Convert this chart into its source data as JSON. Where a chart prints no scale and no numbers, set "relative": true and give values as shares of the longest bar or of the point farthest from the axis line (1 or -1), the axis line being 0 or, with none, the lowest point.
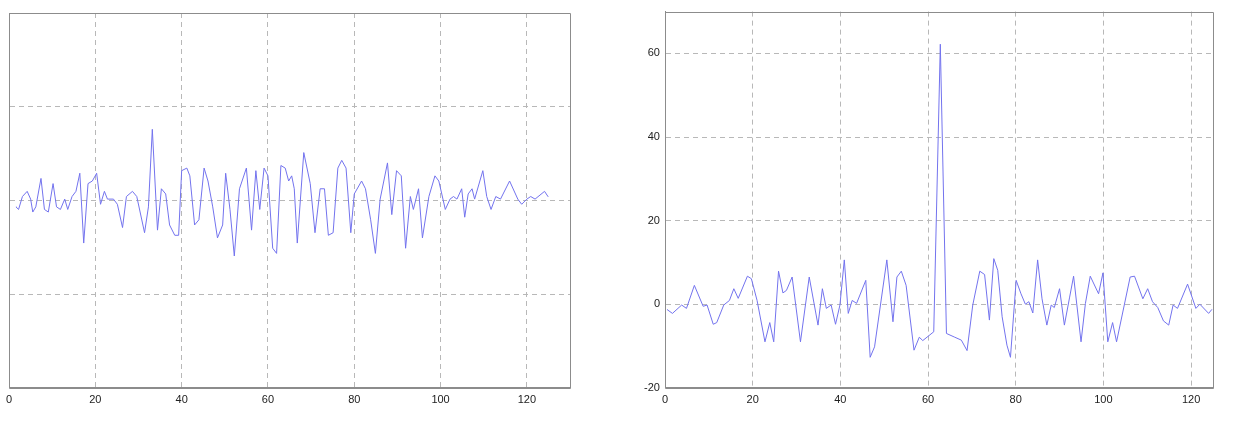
{
  "chart_data": [
    {
      "type": "line",
      "relative": true,
      "color": "#7373ee",
      "grid": true,
      "xlim": [
        0,
        130
      ],
      "xticks": [
        0,
        20,
        40,
        60,
        80,
        100,
        120
      ],
      "x": [
        1.6,
        2.2,
        3.1,
        4.2,
        5.0,
        5.5,
        6.2,
        7.4,
        8.2,
        9.1,
        10.2,
        11.0,
        11.9,
        12.9,
        13.6,
        14.6,
        15.5,
        16.4,
        17.3,
        18.3,
        19.3,
        20.3,
        21.2,
        22.1,
        22.8,
        24.2,
        25.1,
        26.3,
        27.2,
        28.6,
        29.6,
        31.4,
        32.3,
        33.2,
        34.4,
        35.3,
        36.3,
        37.2,
        38.4,
        39.3,
        40.0,
        41.2,
        41.9,
        43.0,
        44.0,
        45.2,
        46.1,
        47.2,
        48.3,
        49.5,
        50.2,
        51.2,
        52.2,
        53.4,
        55.0,
        56.2,
        57.2,
        58.1,
        59.1,
        60.0,
        61.1,
        62.0,
        63.0,
        64.0,
        64.8,
        65.5,
        66.1,
        66.8,
        68.3,
        69.8,
        70.9,
        72.1,
        73.1,
        74.0,
        75.1,
        76.2,
        77.1,
        78.1,
        79.2,
        80.0,
        81.7,
        82.6,
        83.8,
        84.9,
        86.0,
        87.7,
        88.7,
        89.8,
        90.9,
        91.9,
        93.0,
        93.7,
        94.9,
        95.8,
        97.3,
        98.7,
        99.6,
        101.1,
        102.2,
        103.0,
        103.8,
        104.9,
        105.6,
        106.4,
        107.3,
        107.9,
        109.8,
        110.7,
        111.7,
        112.8,
        113.9,
        116.0,
        117.9,
        118.8,
        120.0,
        120.9,
        121.9,
        124.1,
        124.9
      ],
      "values": [
        0.7,
        0.69,
        0.74,
        0.76,
        0.73,
        0.68,
        0.7,
        0.81,
        0.69,
        0.68,
        0.79,
        0.7,
        0.69,
        0.73,
        0.69,
        0.74,
        0.76,
        0.83,
        0.56,
        0.79,
        0.8,
        0.83,
        0.71,
        0.76,
        0.73,
        0.73,
        0.71,
        0.62,
        0.74,
        0.76,
        0.74,
        0.6,
        0.7,
        1.0,
        0.61,
        0.77,
        0.75,
        0.63,
        0.59,
        0.59,
        0.84,
        0.85,
        0.82,
        0.63,
        0.65,
        0.85,
        0.8,
        0.7,
        0.58,
        0.63,
        0.83,
        0.69,
        0.51,
        0.77,
        0.85,
        0.61,
        0.84,
        0.69,
        0.85,
        0.82,
        0.54,
        0.52,
        0.86,
        0.85,
        0.8,
        0.82,
        0.77,
        0.56,
        0.91,
        0.79,
        0.6,
        0.77,
        0.77,
        0.59,
        0.6,
        0.85,
        0.88,
        0.85,
        0.6,
        0.75,
        0.8,
        0.77,
        0.65,
        0.52,
        0.73,
        0.87,
        0.67,
        0.84,
        0.82,
        0.54,
        0.74,
        0.69,
        0.77,
        0.58,
        0.74,
        0.82,
        0.8,
        0.69,
        0.73,
        0.74,
        0.73,
        0.77,
        0.66,
        0.75,
        0.77,
        0.73,
        0.84,
        0.74,
        0.69,
        0.74,
        0.73,
        0.8,
        0.73,
        0.71,
        0.73,
        0.74,
        0.73,
        0.76,
        0.74
      ]
    },
    {
      "type": "line",
      "color": "#7373ee",
      "grid": true,
      "xlim": [
        0,
        125
      ],
      "xticks": [
        0,
        20,
        40,
        60,
        80,
        100,
        120
      ],
      "ylim": [
        -20,
        70
      ],
      "yticks": [
        -20,
        0,
        20,
        40,
        60
      ],
      "x": [
        0.5,
        1.7,
        3.8,
        4.9,
        6.7,
        8.7,
        9.6,
        11.0,
        11.8,
        13.4,
        14.7,
        15.7,
        16.7,
        18.8,
        19.7,
        21.0,
        22.8,
        23.9,
        24.8,
        25.9,
        26.9,
        27.7,
        29.0,
        30.9,
        32.9,
        34.9,
        35.9,
        36.8,
        37.9,
        38.9,
        39.9,
        40.9,
        41.8,
        42.7,
        43.7,
        45.8,
        46.8,
        47.8,
        50.6,
        52.0,
        52.9,
        53.9,
        55.0,
        56.8,
        58.0,
        58.8,
        61.3,
        62.8,
        64.2,
        66.1,
        67.6,
        68.9,
        70.2,
        71.8,
        72.9,
        74.0,
        75.0,
        75.9,
        76.9,
        78.0,
        78.8,
        80.1,
        81.2,
        82.2,
        83.0,
        83.9,
        85.0,
        86.0,
        87.1,
        88.1,
        88.8,
        90.0,
        91.1,
        92.3,
        93.2,
        94.9,
        95.9,
        97.0,
        98.9,
        99.9,
        101.0,
        102.1,
        103.0,
        106.1,
        107.1,
        109.0,
        110.1,
        111.2,
        112.4,
        113.7,
        114.9,
        115.9,
        116.9,
        119.2,
        121.1,
        122.0,
        124.0,
        124.7
      ],
      "values": [
        -1.3,
        -2.2,
        -0.2,
        -1.0,
        4.5,
        -0.5,
        -0.2,
        -4.8,
        -4.4,
        -0.2,
        0.9,
        3.7,
        1.4,
        6.7,
        6.1,
        0.9,
        -9.0,
        -4.4,
        -9.0,
        7.9,
        2.7,
        3.3,
        6.5,
        -9.0,
        6.5,
        -5.0,
        3.7,
        -1.0,
        -0.2,
        -4.8,
        -0.2,
        10.6,
        -2.2,
        0.9,
        0.2,
        5.7,
        -12.7,
        -10.2,
        10.6,
        -4.2,
        6.5,
        7.9,
        4.5,
        -11.0,
        -7.9,
        -8.7,
        -6.6,
        62.2,
        -7.0,
        -7.9,
        -8.6,
        -11.1,
        -0.2,
        7.9,
        7.1,
        -3.8,
        10.9,
        8.1,
        -3.0,
        -9.8,
        -12.7,
        5.7,
        2.5,
        0.0,
        0.6,
        -2.1,
        10.6,
        1.3,
        -5.0,
        -0.2,
        -0.8,
        3.7,
        -5.0,
        1.7,
        6.7,
        -9.0,
        0.2,
        6.7,
        2.5,
        7.5,
        -9.0,
        -4.4,
        -9.0,
        6.5,
        6.7,
        1.3,
        3.7,
        0.6,
        -0.8,
        -4.0,
        -5.0,
        -0.2,
        -1.0,
        4.8,
        -1.0,
        0.0,
        -2.2,
        -1.3
      ]
    }
  ]
}
